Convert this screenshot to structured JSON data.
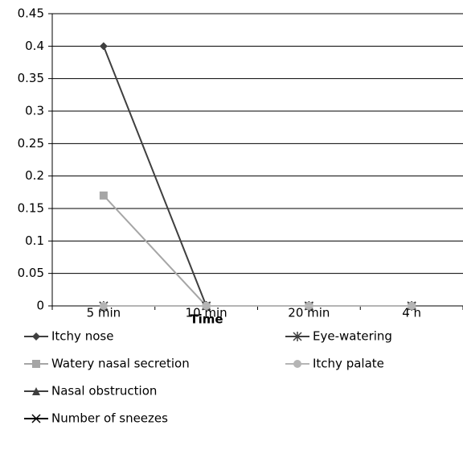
{
  "chart_data": {
    "type": "line",
    "x_label": "Time",
    "categories": [
      "5 min",
      "10 min",
      "20 min",
      "4 h"
    ],
    "series": [
      {
        "name": "Itchy nose",
        "color": "#3f3f3f",
        "marker": "diamond",
        "values": [
          0.4,
          0,
          0,
          0
        ]
      },
      {
        "name": "Watery nasal secretion",
        "color": "#a6a6a6",
        "marker": "square",
        "values": [
          0.17,
          0,
          0,
          0
        ]
      },
      {
        "name": "Nasal obstruction",
        "color": "#3f3f3f",
        "marker": "triangle",
        "values": [
          0,
          0,
          0,
          0
        ]
      },
      {
        "name": "Number of sneezes",
        "color": "#000000",
        "marker": "x",
        "values": [
          0,
          0,
          0,
          0
        ]
      },
      {
        "name": "Eye-watering",
        "color": "#3f3f3f",
        "marker": "star",
        "values": [
          0,
          0,
          0,
          0
        ]
      },
      {
        "name": "Itchy palate",
        "color": "#b5b5b5",
        "marker": "circle",
        "values": [
          0,
          0,
          0,
          0
        ]
      }
    ],
    "ylim": [
      0,
      0.45
    ],
    "yticks": [
      0,
      0.05,
      0.1,
      0.15,
      0.2,
      0.25,
      0.3,
      0.35,
      0.4,
      0.45
    ],
    "grid": true
  }
}
